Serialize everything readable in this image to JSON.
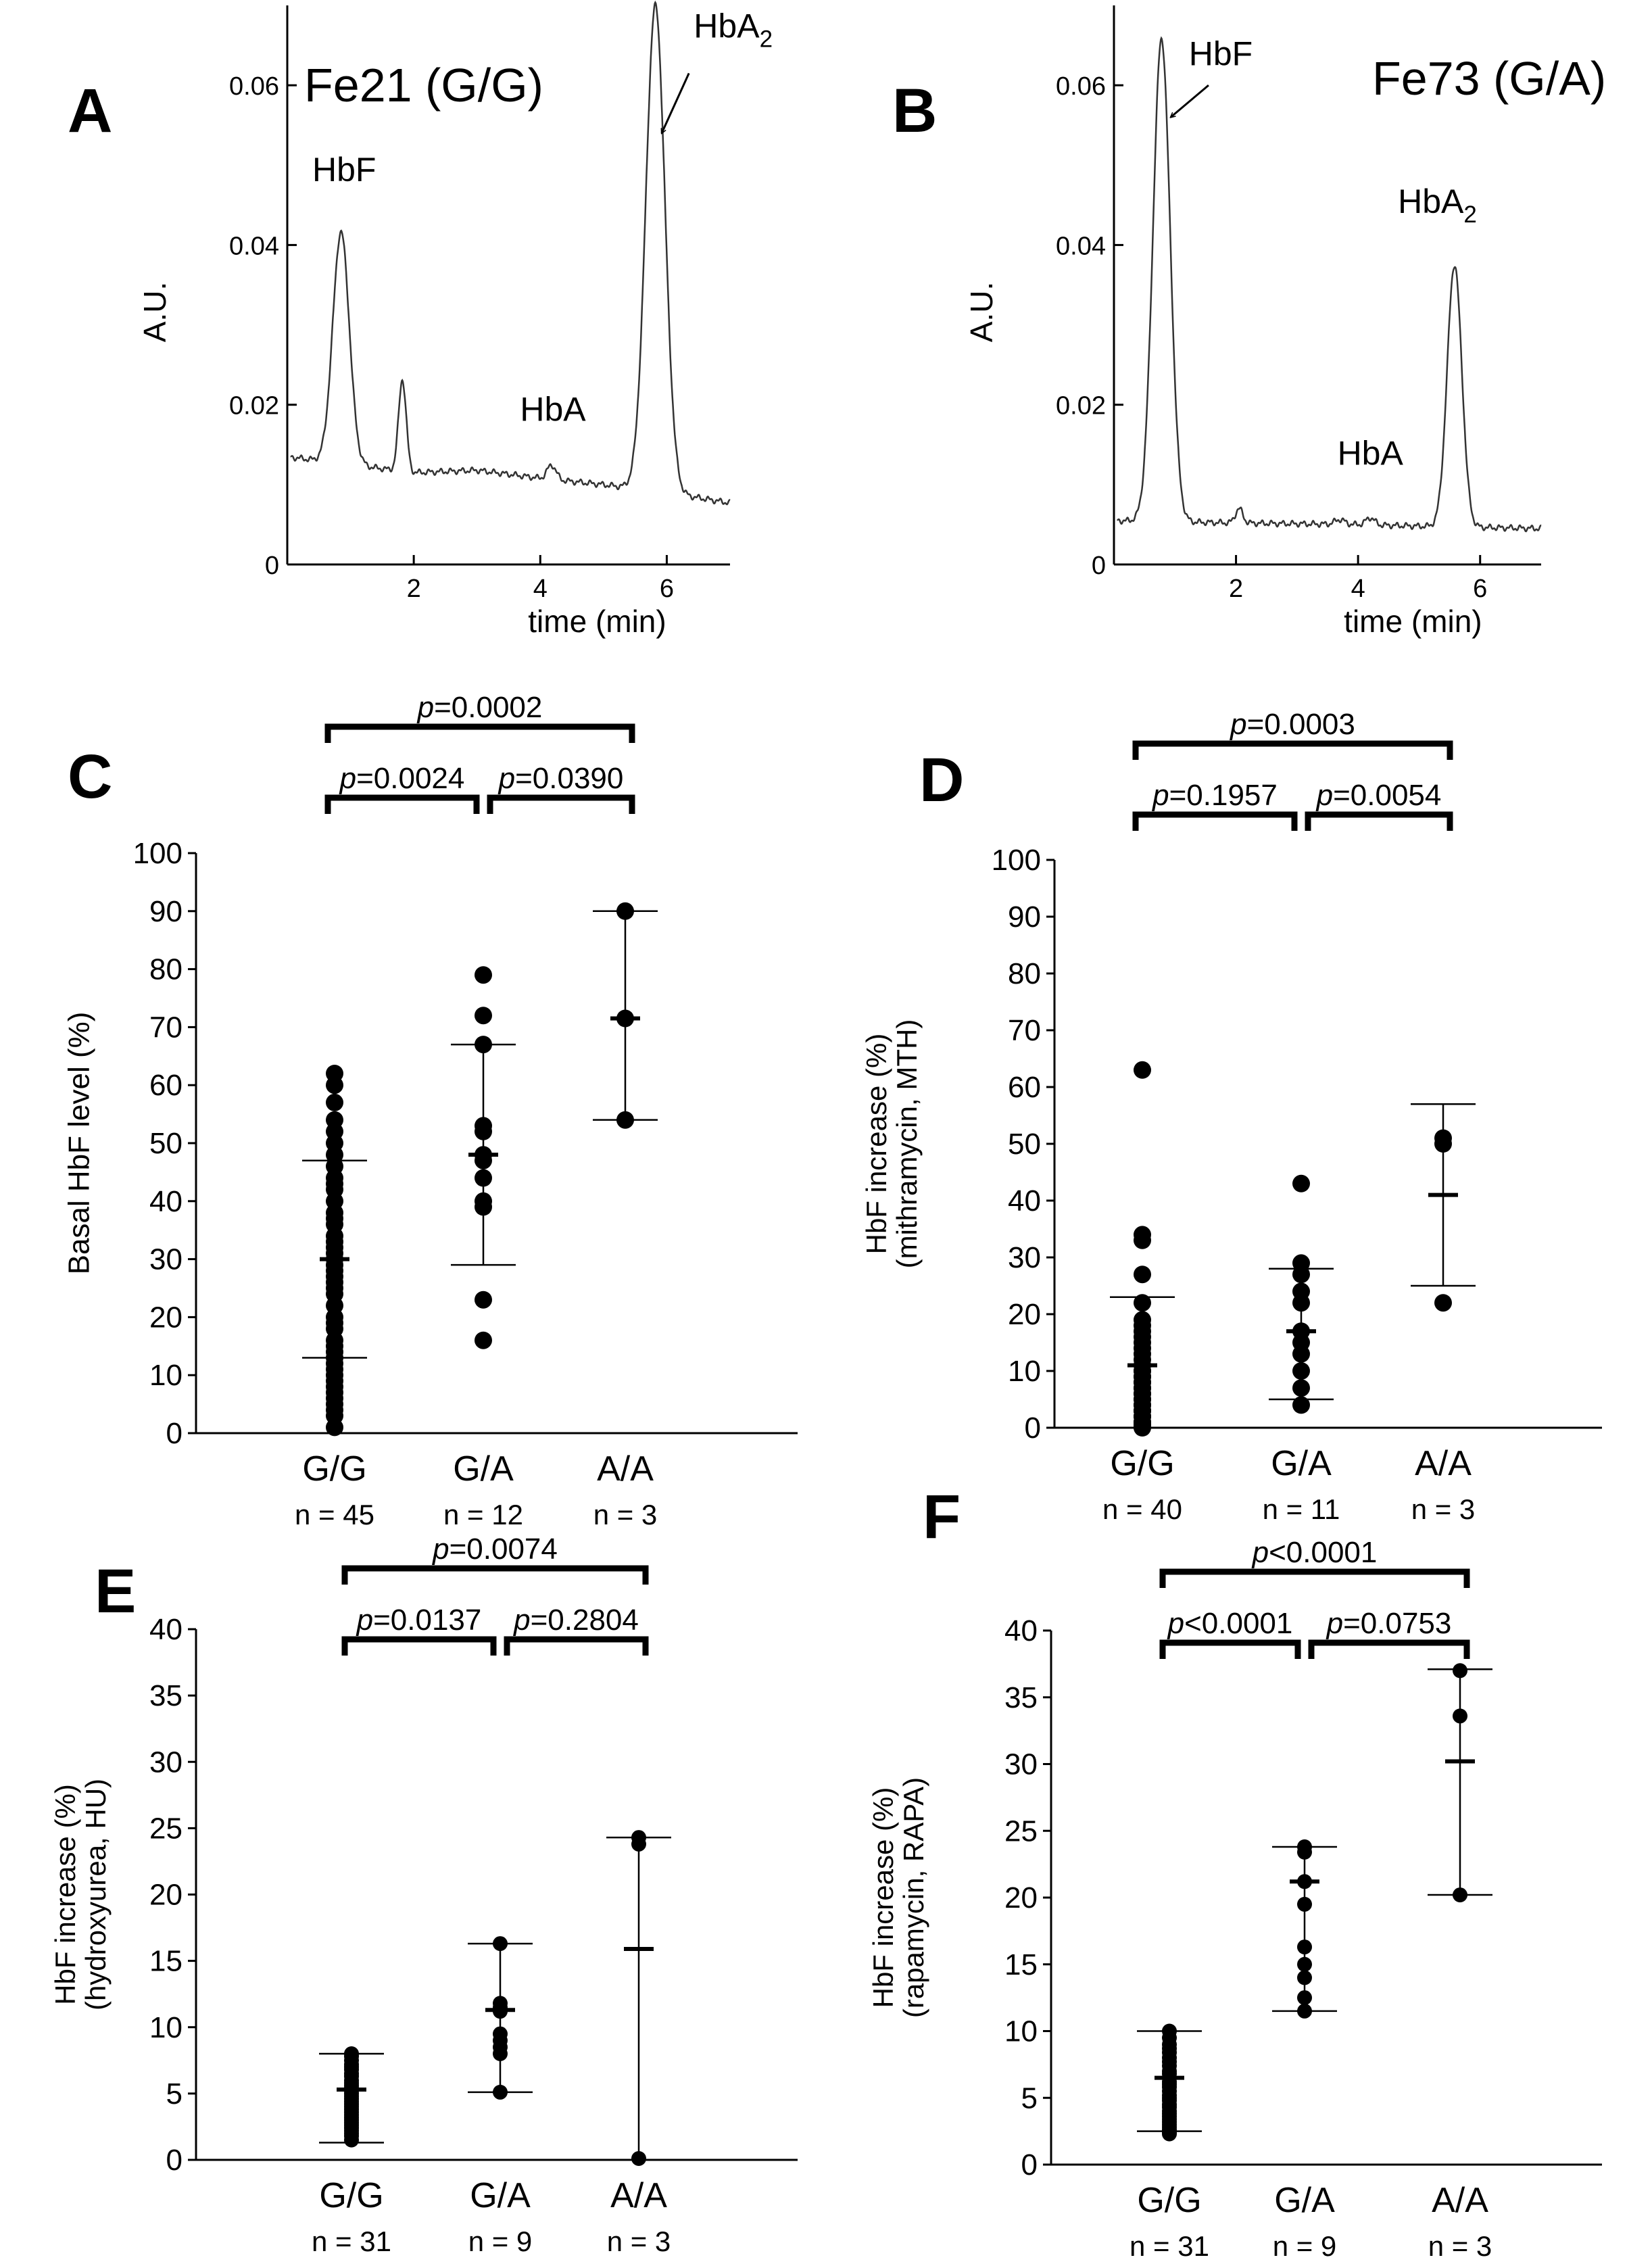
{
  "colors": {
    "ink": "#000000",
    "trace": "#333333",
    "error_bar": "#000000"
  },
  "chart_data": [
    {
      "panel": "A",
      "type": "line",
      "title": "Fe21 (G/G)",
      "xlabel": "time (min)",
      "ylabel": "A.U.",
      "xlim": [
        0,
        7
      ],
      "ylim": [
        0,
        0.07
      ],
      "xticks": [
        2,
        4,
        6
      ],
      "yticks": [
        {
          "v": 0,
          "label": "0"
        },
        {
          "v": 0.02,
          "label": "0.02"
        },
        {
          "v": 0.04,
          "label": "0.04"
        },
        {
          "v": 0.06,
          "label": "0.06"
        }
      ],
      "baseline": [
        [
          0,
          0.0135
        ],
        [
          2,
          0.0115
        ],
        [
          3,
          0.0118
        ],
        [
          4,
          0.0108
        ],
        [
          5,
          0.01
        ],
        [
          6,
          0.009
        ],
        [
          7,
          0.0077
        ]
      ],
      "peaks": [
        {
          "t": 0.85,
          "h": 0.029,
          "w": 0.13
        },
        {
          "t": 1.82,
          "h": 0.0115,
          "w": 0.06
        },
        {
          "t": 4.18,
          "h": 0.0018,
          "w": 0.07
        },
        {
          "t": 5.82,
          "h": 0.0608,
          "w": 0.15
        }
      ],
      "annotations": [
        {
          "text": "HbF",
          "sub": "",
          "t": 0.9,
          "v": 0.048,
          "arrow": false
        },
        {
          "text": "HbA",
          "sub": "",
          "t": 4.2,
          "v": 0.018,
          "arrow": false
        },
        {
          "text": "HbA",
          "sub": "2",
          "t": 7.05,
          "v": 0.066,
          "arrow": true,
          "arrow_from": [
            6.35,
            0.0615
          ],
          "arrow_to": [
            5.92,
            0.054
          ]
        }
      ]
    },
    {
      "panel": "B",
      "type": "line",
      "title": "Fe73 (G/A)",
      "xlabel": "time (min)",
      "ylabel": "A.U.",
      "xlim": [
        0,
        7
      ],
      "ylim": [
        0,
        0.07
      ],
      "xticks": [
        2,
        4,
        6
      ],
      "yticks": [
        {
          "v": 0,
          "label": "0"
        },
        {
          "v": 0.02,
          "label": "0.02"
        },
        {
          "v": 0.04,
          "label": "0.04"
        },
        {
          "v": 0.06,
          "label": "0.06"
        }
      ],
      "baseline": [
        [
          0,
          0.0055
        ],
        [
          2,
          0.0052
        ],
        [
          4,
          0.005
        ],
        [
          5,
          0.0048
        ],
        [
          7,
          0.0045
        ]
      ],
      "peaks": [
        {
          "t": 0.78,
          "h": 0.0605,
          "w": 0.14
        },
        {
          "t": 2.05,
          "h": 0.0018,
          "w": 0.06
        },
        {
          "t": 3.7,
          "h": 0.0006,
          "w": 0.08
        },
        {
          "t": 4.2,
          "h": 0.0009,
          "w": 0.07
        },
        {
          "t": 5.58,
          "h": 0.0328,
          "w": 0.12
        }
      ],
      "annotations": [
        {
          "text": "HbF",
          "sub": "",
          "t": 1.75,
          "v": 0.0625,
          "arrow": true,
          "arrow_from": [
            1.55,
            0.06
          ],
          "arrow_to": [
            0.93,
            0.056
          ]
        },
        {
          "text": "HbA",
          "sub": "2",
          "t": 5.3,
          "v": 0.044,
          "arrow": false
        },
        {
          "text": "HbA",
          "sub": "",
          "t": 4.2,
          "v": 0.0125,
          "arrow": false
        }
      ]
    },
    {
      "panel": "C",
      "type": "scatter",
      "ylabel": "Basal HbF level (%)",
      "ylim": [
        0,
        100
      ],
      "yticks": [
        0,
        10,
        20,
        30,
        40,
        50,
        60,
        70,
        80,
        90,
        100
      ],
      "categories": [
        "G/G",
        "G/A",
        "A/A"
      ],
      "n_labels": [
        "n = 45",
        "n = 12",
        "n = 3"
      ],
      "series": [
        {
          "name": "G/G",
          "mean": 30,
          "sd_upper": 47,
          "sd_lower": 13,
          "values": [
            62,
            60,
            57,
            54,
            52,
            50,
            48,
            46,
            44,
            43,
            42,
            40,
            38,
            37,
            36,
            34,
            33,
            32,
            31,
            30,
            29,
            28,
            27,
            26,
            25,
            24,
            22,
            20,
            19,
            18,
            16,
            15,
            14,
            13,
            12,
            11,
            10,
            9,
            8,
            7,
            6,
            5,
            4,
            3,
            1
          ]
        },
        {
          "name": "G/A",
          "mean": 48,
          "sd_upper": 67,
          "sd_lower": 29,
          "values": [
            79,
            72,
            67,
            53,
            52,
            48,
            47,
            44,
            40,
            39,
            23,
            16
          ]
        },
        {
          "name": "A/A",
          "mean": 71.5,
          "sd_upper": 90,
          "sd_lower": 54,
          "values": [
            90,
            71.5,
            54
          ]
        }
      ],
      "comparisons": [
        {
          "label": "p=0.0002",
          "from": 0,
          "to": 2,
          "level": 2
        },
        {
          "label": "p=0.0024",
          "from": 0,
          "to": 1,
          "level": 1
        },
        {
          "label": "p=0.0390",
          "from": 1,
          "to": 2,
          "level": 1
        }
      ]
    },
    {
      "panel": "D",
      "type": "scatter",
      "ylabel": "HbF increase (%)",
      "ylabel2": "(mithramycin, MTH)",
      "ylim": [
        0,
        100
      ],
      "yticks": [
        0,
        10,
        20,
        30,
        40,
        50,
        60,
        70,
        80,
        90,
        100
      ],
      "categories": [
        "G/G",
        "G/A",
        "A/A"
      ],
      "n_labels": [
        "n = 40",
        "n = 11",
        "n = 3"
      ],
      "series": [
        {
          "name": "G/G",
          "mean": 11,
          "sd_upper": 23,
          "sd_lower": 0,
          "values": [
            63,
            34,
            33,
            27,
            22,
            19,
            18,
            17,
            16,
            15,
            14,
            13,
            12,
            11,
            10,
            10,
            9,
            9,
            8,
            8,
            7,
            7,
            6,
            6,
            5,
            5,
            4,
            4,
            3,
            3,
            3,
            2,
            2,
            2,
            1,
            1,
            1,
            0.5,
            0.5,
            0
          ]
        },
        {
          "name": "G/A",
          "mean": 17,
          "sd_upper": 28,
          "sd_lower": 5,
          "values": [
            43,
            29,
            27,
            24,
            22,
            17,
            15,
            13,
            10,
            7,
            4
          ]
        },
        {
          "name": "A/A",
          "mean": 41,
          "sd_upper": 57,
          "sd_lower": 25,
          "values": [
            51,
            50,
            22
          ]
        }
      ],
      "comparisons": [
        {
          "label": "p=0.0003",
          "from": 0,
          "to": 2,
          "level": 2
        },
        {
          "label": "p=0.1957",
          "from": 0,
          "to": 1,
          "level": 1
        },
        {
          "label": "p=0.0054",
          "from": 1,
          "to": 2,
          "level": 1
        }
      ]
    },
    {
      "panel": "E",
      "type": "scatter",
      "ylabel": "HbF increase (%)",
      "ylabel2": "(hydroxyurea, HU)",
      "ylim": [
        0,
        40
      ],
      "yticks": [
        0,
        5,
        10,
        15,
        20,
        25,
        30,
        35,
        40
      ],
      "categories": [
        "G/G",
        "G/A",
        "A/A"
      ],
      "n_labels": [
        "n = 31",
        "n = 9",
        "n = 3"
      ],
      "series": [
        {
          "name": "G/G",
          "mean": 5.3,
          "sd_upper": 8,
          "sd_lower": 1.3,
          "values": [
            8,
            7.8,
            7.5,
            7.2,
            7,
            6.8,
            6.5,
            6.3,
            6,
            5.8,
            5.6,
            5.4,
            5.2,
            5,
            4.8,
            4.6,
            4.4,
            4.2,
            4,
            3.8,
            3.6,
            3.4,
            3.2,
            3,
            2.8,
            2.6,
            2.4,
            2.2,
            2,
            1.8,
            1.5
          ]
        },
        {
          "name": "G/A",
          "mean": 11.3,
          "sd_upper": 16.3,
          "sd_lower": 5.1,
          "values": [
            16.3,
            11.8,
            11.5,
            11.2,
            9.5,
            9,
            8.5,
            8,
            5.1
          ]
        },
        {
          "name": "A/A",
          "mean": 15.9,
          "sd_upper": 24.3,
          "sd_lower": 0,
          "values": [
            24.3,
            23.8,
            0.1
          ]
        }
      ],
      "comparisons": [
        {
          "label": "p=0.0074",
          "from": 0,
          "to": 2,
          "level": 2
        },
        {
          "label": "p=0.0137",
          "from": 0,
          "to": 1,
          "level": 1
        },
        {
          "label": "p=0.2804",
          "from": 1,
          "to": 2,
          "level": 1
        }
      ]
    },
    {
      "panel": "F",
      "type": "scatter",
      "ylabel": "HbF increase (%)",
      "ylabel2": "(rapamycin, RAPA)",
      "ylim": [
        0,
        40
      ],
      "yticks": [
        0,
        5,
        10,
        15,
        20,
        25,
        30,
        35,
        40
      ],
      "categories": [
        "G/G",
        "G/A",
        "A/A"
      ],
      "n_labels": [
        "n = 31",
        "n = 9",
        "n = 3"
      ],
      "series": [
        {
          "name": "G/G",
          "mean": 6.5,
          "sd_upper": 10,
          "sd_lower": 2.5,
          "values": [
            10,
            9.5,
            9,
            8.7,
            8.4,
            8,
            7.7,
            7.4,
            7,
            6.8,
            6.5,
            6.2,
            6,
            5.8,
            5.5,
            5.2,
            5,
            4.8,
            4.5,
            4.3,
            4,
            3.8,
            3.6,
            3.4,
            3.2,
            3,
            2.8,
            2.6,
            2.5,
            2.4,
            2.3
          ]
        },
        {
          "name": "G/A",
          "mean": 21.2,
          "sd_upper": 23.8,
          "sd_lower": 11.5,
          "values": [
            23.8,
            23.4,
            21.2,
            19.5,
            16.3,
            15,
            14,
            12.5,
            11.5
          ]
        },
        {
          "name": "A/A",
          "mean": 30.2,
          "sd_upper": 37.1,
          "sd_lower": 20.2,
          "values": [
            37,
            33.6,
            20.2
          ]
        }
      ],
      "comparisons": [
        {
          "label": "p<0.0001",
          "from": 0,
          "to": 2,
          "level": 2
        },
        {
          "label": "p<0.0001",
          "from": 0,
          "to": 1,
          "level": 1
        },
        {
          "label": "p=0.0753",
          "from": 1,
          "to": 2,
          "level": 1
        }
      ]
    }
  ]
}
